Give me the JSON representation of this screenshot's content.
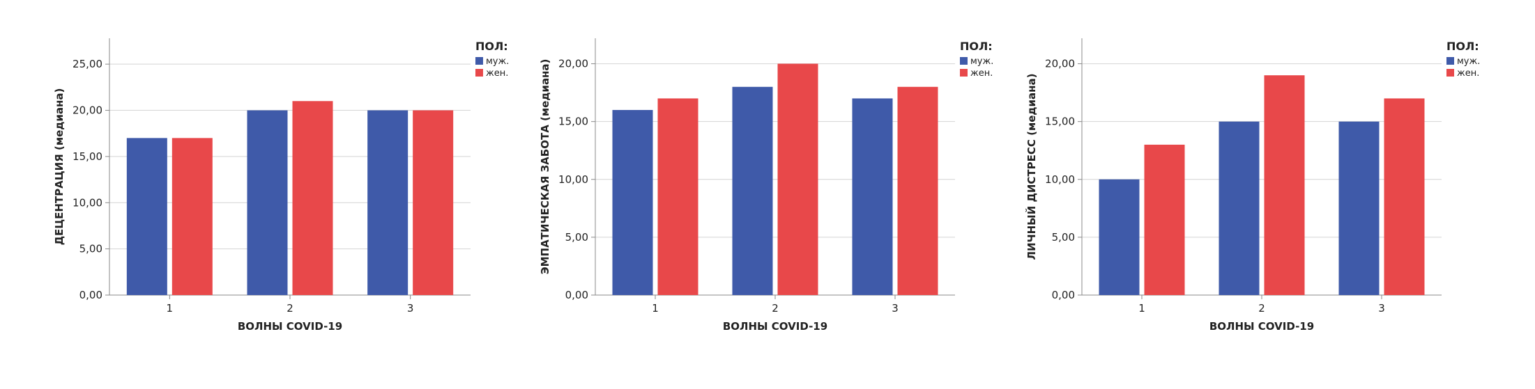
{
  "colors": {
    "male": "#3f5aa9",
    "female": "#e8484a",
    "grid": "#d4d4d4",
    "axis": "#888888"
  },
  "legend": {
    "title": "ПОЛ:",
    "items": [
      "муж.",
      "жен."
    ]
  },
  "chart_data": [
    {
      "type": "bar",
      "xlabel": "ВОЛНЫ COVID-19",
      "ylabel": "ДЕЦЕНТРАЦИЯ (медиана)",
      "categories": [
        "1",
        "2",
        "3"
      ],
      "series": [
        {
          "name": "муж.",
          "values": [
            17,
            20,
            20
          ]
        },
        {
          "name": "жен.",
          "values": [
            17,
            21,
            20
          ]
        }
      ],
      "ylim": [
        0,
        27.8
      ],
      "yticks": [
        "0,00",
        "5,00",
        "10,00",
        "15,00",
        "20,00",
        "25,00"
      ],
      "ytick_values": [
        0,
        5,
        10,
        15,
        20,
        25
      ],
      "grid": true,
      "legend_position": "top-right"
    },
    {
      "type": "bar",
      "xlabel": "ВОЛНЫ COVID-19",
      "ylabel": "ЭМПАТИЧЕСКАЯ ЗАБОТА (медиана)",
      "categories": [
        "1",
        "2",
        "3"
      ],
      "series": [
        {
          "name": "муж.",
          "values": [
            16,
            18,
            17
          ]
        },
        {
          "name": "жен.",
          "values": [
            17,
            20,
            18
          ]
        }
      ],
      "ylim": [
        0,
        22.2
      ],
      "yticks": [
        "0,00",
        "5,00",
        "10,00",
        "15,00",
        "20,00"
      ],
      "ytick_values": [
        0,
        5,
        10,
        15,
        20
      ],
      "grid": true,
      "legend_position": "top-right"
    },
    {
      "type": "bar",
      "xlabel": "ВОЛНЫ COVID-19",
      "ylabel": "ЛИЧНЫЙ ДИСТРЕСС (медиана)",
      "categories": [
        "1",
        "2",
        "3"
      ],
      "series": [
        {
          "name": "муж.",
          "values": [
            10,
            15,
            15
          ]
        },
        {
          "name": "жен.",
          "values": [
            13,
            19,
            17
          ]
        }
      ],
      "ylim": [
        0,
        22.2
      ],
      "yticks": [
        "0,00",
        "5,00",
        "10,00",
        "15,00",
        "20,00"
      ],
      "ytick_values": [
        0,
        5,
        10,
        15,
        20
      ],
      "grid": true,
      "legend_position": "top-right"
    }
  ]
}
